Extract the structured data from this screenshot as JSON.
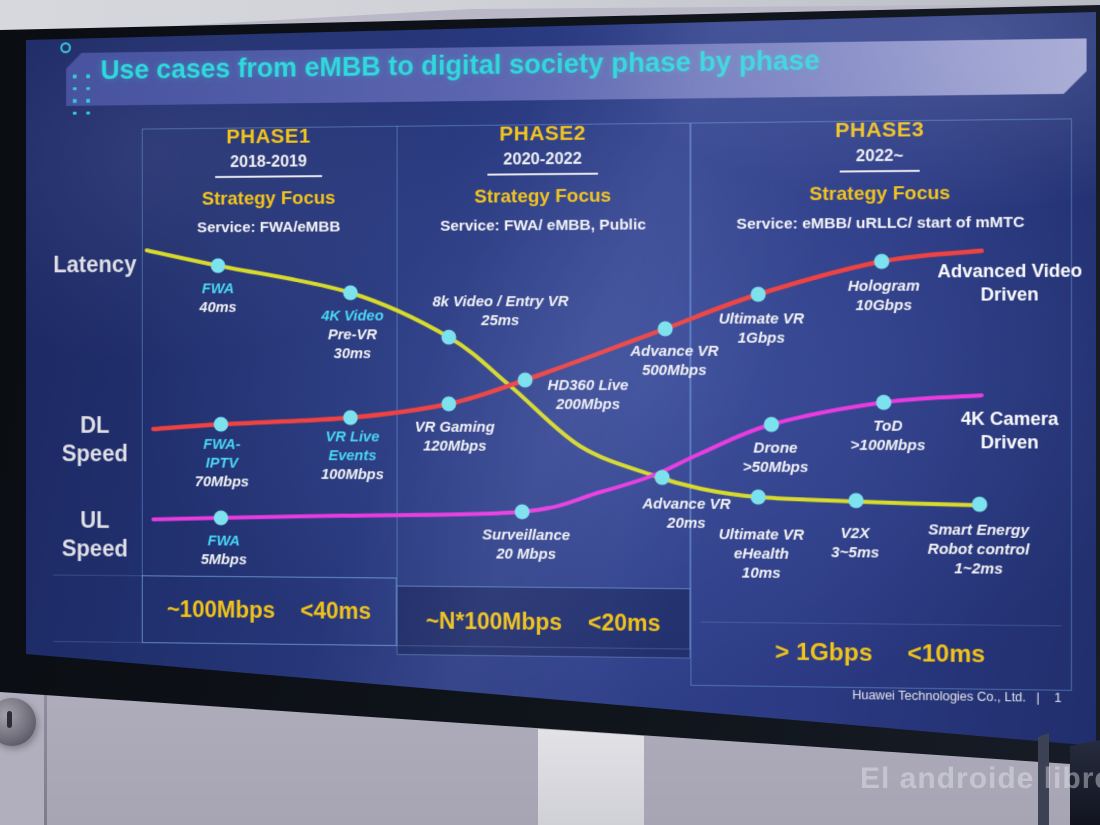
{
  "window": {
    "watermark": "El androide libre",
    "footer_company": "Huawei Technologies Co., Ltd.",
    "footer_sep": "|",
    "footer_page": "1"
  },
  "slide": {
    "title": "Use cases from eMBB to digital society phase by phase",
    "row_labels": {
      "latency": "Latency",
      "dl_1": "DL",
      "dl_2": "Speed",
      "ul_1": "UL",
      "ul_2": "Speed"
    },
    "phases": [
      {
        "name": "PHASE1",
        "years": "2018-2019",
        "focus_label": "Strategy Focus",
        "service": "Service: FWA/eMBB",
        "summary_speed": "~100Mbps",
        "summary_latency": "<40ms"
      },
      {
        "name": "PHASE2",
        "years": "2020-2022",
        "focus_label": "Strategy Focus",
        "service": "Service: FWA/ eMBB, Public",
        "summary_speed": "~N*100Mbps",
        "summary_latency": "<20ms"
      },
      {
        "name": "PHASE3",
        "years": "2022~",
        "focus_label": "Strategy Focus",
        "service": "Service: eMBB/ uRLLC/ start of mMTC",
        "summary_speed": "> 1Gbps",
        "summary_latency": "<10ms"
      }
    ]
  },
  "colors": {
    "title_text": "#30d9dd",
    "accent_yellow": "#f4c51c",
    "dot": "#7ce2ee",
    "label_cyan": "#4ad7f3",
    "curve_latency": "#d9db2c",
    "curve_dl": "#ee4343",
    "curve_ul": "#e93ce0"
  },
  "chart_data": {
    "type": "line",
    "title": "Use cases from eMBB to digital society phase by phase",
    "x_phases": [
      "PHASE1 2018-2019",
      "PHASE2 2020-2022",
      "PHASE3 2022~"
    ],
    "rows": [
      "Latency",
      "DL Speed",
      "UL Speed"
    ],
    "legend_position": "none",
    "grid": "phase column dividers only",
    "series": [
      {
        "name": "Latency",
        "color": "#d9db2c",
        "trend": "decreasing",
        "points": [
          {
            "name": "FWA",
            "value": "40ms",
            "lines": [
              [
                "FWA",
                "c"
              ],
              [
                "40ms",
                "w"
              ]
            ]
          },
          {
            "name": "4K Video Pre-VR",
            "value": "30ms",
            "lines": [
              [
                "4K Video",
                "c"
              ],
              [
                "Pre-VR",
                "w"
              ],
              [
                "30ms",
                "w"
              ]
            ]
          },
          {
            "name": "8k Video / Entry VR",
            "value": "25ms",
            "lines": [
              [
                "8k Video / Entry VR",
                "w"
              ],
              [
                "25ms",
                "w"
              ]
            ]
          },
          {
            "name": "Advance VR",
            "value": "20ms",
            "lines": [
              [
                "Advance VR",
                "w"
              ],
              [
                "20ms",
                "w"
              ]
            ]
          },
          {
            "name": "Ultimate VR eHealth",
            "value": "10ms",
            "lines": [
              [
                "Ultimate VR",
                "w"
              ],
              [
                "eHealth",
                "w"
              ],
              [
                "10ms",
                "w"
              ]
            ]
          },
          {
            "name": "V2X",
            "value": "3~5ms",
            "lines": [
              [
                "V2X",
                "w"
              ],
              [
                "3~5ms",
                "w"
              ]
            ]
          },
          {
            "name": "Smart Energy Robot control",
            "value": "1~2ms",
            "lines": [
              [
                "Smart Energy",
                "w"
              ],
              [
                "Robot control",
                "w"
              ],
              [
                "1~2ms",
                "w"
              ]
            ]
          }
        ]
      },
      {
        "name": "DL Speed",
        "color": "#ee4343",
        "trend": "increasing",
        "end_label": "Advanced Video Driven",
        "end_label_lines": [
          "Advanced Video",
          "Driven"
        ],
        "points": [
          {
            "name": "FWA-IPTV",
            "value": "70Mbps",
            "lines": [
              [
                "FWA-",
                "c"
              ],
              [
                "IPTV",
                "c"
              ],
              [
                "70Mbps",
                "w"
              ]
            ]
          },
          {
            "name": "VR Live Events",
            "value": "100Mbps",
            "lines": [
              [
                "VR Live",
                "c"
              ],
              [
                "Events",
                "c"
              ],
              [
                "100Mbps",
                "w"
              ]
            ]
          },
          {
            "name": "VR Gaming",
            "value": "120Mbps",
            "lines": [
              [
                "VR Gaming",
                "w"
              ],
              [
                "120Mbps",
                "w"
              ]
            ]
          },
          {
            "name": "HD360 Live",
            "value": "200Mbps",
            "lines": [
              [
                "HD360 Live",
                "w"
              ],
              [
                "200Mbps",
                "w"
              ]
            ]
          },
          {
            "name": "Advance VR",
            "value": "500Mbps",
            "lines": [
              [
                "Advance VR",
                "w"
              ],
              [
                "500Mbps",
                "w"
              ]
            ]
          },
          {
            "name": "Ultimate VR",
            "value": "1Gbps",
            "lines": [
              [
                "Ultimate VR",
                "w"
              ],
              [
                "1Gbps",
                "w"
              ]
            ]
          },
          {
            "name": "Hologram",
            "value": "10Gbps",
            "lines": [
              [
                "Hologram",
                "w"
              ],
              [
                "10Gbps",
                "w"
              ]
            ]
          }
        ]
      },
      {
        "name": "UL Speed",
        "color": "#e93ce0",
        "trend": "increasing",
        "end_label": "4K Camera Driven",
        "end_label_lines": [
          "4K Camera",
          "Driven"
        ],
        "points": [
          {
            "name": "FWA",
            "value": "5Mbps",
            "lines": [
              [
                "FWA",
                "c"
              ],
              [
                "5Mbps",
                "w"
              ]
            ]
          },
          {
            "name": "Surveillance",
            "value": "20 Mbps",
            "lines": [
              [
                "Surveillance",
                "w"
              ],
              [
                "20 Mbps",
                "w"
              ]
            ]
          },
          {
            "name": "Drone",
            "value": ">50Mbps",
            "lines": [
              [
                "Drone",
                "w"
              ],
              [
                ">50Mbps",
                "w"
              ]
            ]
          },
          {
            "name": "ToD",
            "value": ">100Mbps",
            "lines": [
              [
                "ToD",
                "w"
              ],
              [
                ">100Mbps",
                "w"
              ]
            ]
          }
        ]
      }
    ]
  }
}
